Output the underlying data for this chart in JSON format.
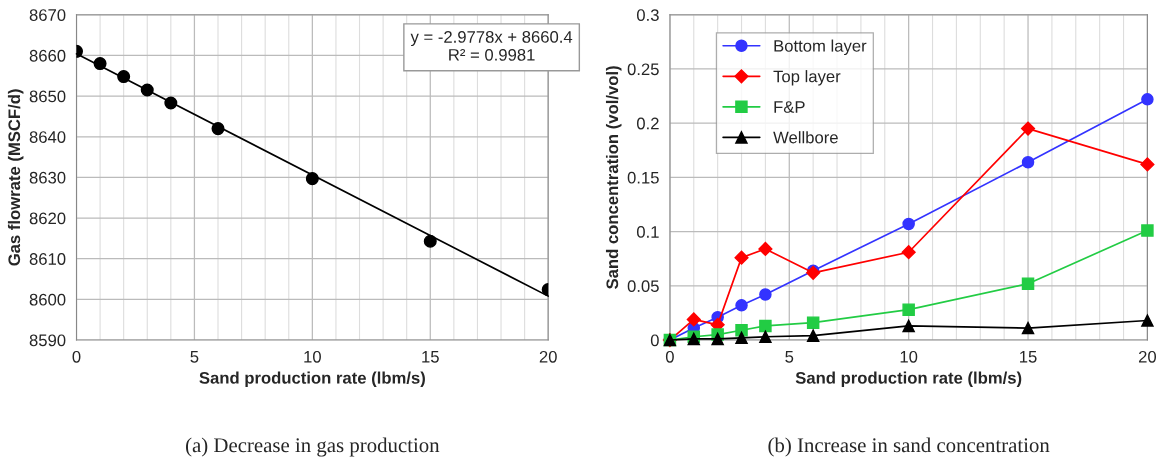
{
  "chart_data": [
    {
      "type": "scatter",
      "title": "(a) Decrease in gas production",
      "xlabel": "Sand production rate (lbm/s)",
      "ylabel": "Gas flowrate (MSCF/d)",
      "x": [
        0,
        1,
        2,
        3,
        4,
        6,
        10,
        15,
        20
      ],
      "series": [
        {
          "color": "#000000",
          "values": [
            8661,
            8658,
            8654.8,
            8651.5,
            8648.3,
            8642,
            8629.7,
            8614.3,
            8602.4
          ]
        },
        {
          "type": "line",
          "color": "#000000",
          "x": [
            0,
            20
          ],
          "values": [
            8660.4,
            8600.8
          ],
          "marker": "none"
        }
      ],
      "annotations": [
        "y = -2.9778x + 8660.4",
        "R² = 0.9981"
      ],
      "xlim": [
        0,
        20
      ],
      "xticks": [
        0,
        5,
        10,
        15,
        20
      ],
      "ylim": [
        8590,
        8670
      ],
      "yticks": [
        8590,
        8600,
        8610,
        8620,
        8630,
        8640,
        8650,
        8660,
        8670
      ],
      "grid": true,
      "marker": "circle",
      "legend": false
    },
    {
      "type": "line",
      "title": "(b) Increase in sand concentration",
      "xlabel": "Sand production rate (lbm/s)",
      "ylabel": "Sand concentration (vol/vol)",
      "x": [
        0,
        1,
        2,
        3,
        4,
        6,
        10,
        15,
        20
      ],
      "series": [
        {
          "name": "Bottom layer",
          "color": "#3333ff",
          "marker": "circle",
          "values": [
            0,
            0.011,
            0.021,
            0.032,
            0.042,
            0.064,
            0.107,
            0.164,
            0.222
          ]
        },
        {
          "name": "Top layer",
          "color": "#ff0000",
          "marker": "diamond",
          "values": [
            0,
            0.019,
            0.014,
            0.076,
            0.084,
            0.062,
            0.081,
            0.195,
            0.162
          ]
        },
        {
          "name": "F&P",
          "color": "#22cc44",
          "marker": "square",
          "values": [
            0,
            0.003,
            0.005,
            0.009,
            0.013,
            0.016,
            0.028,
            0.052,
            0.101
          ]
        },
        {
          "name": "Wellbore",
          "color": "#000000",
          "marker": "triangle",
          "values": [
            0,
            0.001,
            0.001,
            0.002,
            0.003,
            0.004,
            0.013,
            0.011,
            0.018
          ]
        }
      ],
      "xlim": [
        0,
        20
      ],
      "xticks": [
        0,
        5,
        10,
        15,
        20
      ],
      "ylim": [
        0,
        0.3
      ],
      "yticks": [
        0,
        0.05,
        0.1,
        0.15,
        0.2,
        0.25,
        0.3
      ],
      "grid": true,
      "legend": "top left"
    }
  ]
}
